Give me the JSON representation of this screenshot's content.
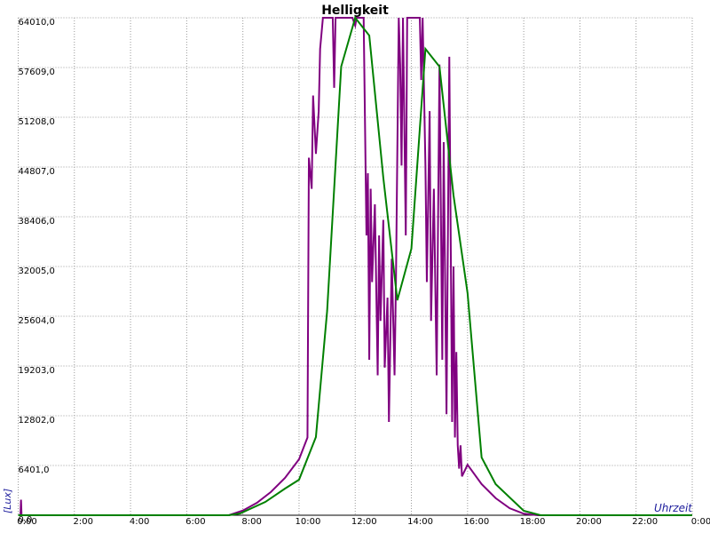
{
  "chart_data": {
    "type": "line",
    "title": "Helligkeit",
    "y_label": "[Lux]",
    "x_label": "Uhrzeit",
    "grid": true,
    "xlim": [
      0,
      24
    ],
    "ylim": [
      0,
      64010
    ],
    "xticks": [
      {
        "value": 0,
        "label": "0:00"
      },
      {
        "value": 2,
        "label": "2:00"
      },
      {
        "value": 4,
        "label": "4:00"
      },
      {
        "value": 6,
        "label": "6:00"
      },
      {
        "value": 8,
        "label": "8:00"
      },
      {
        "value": 10,
        "label": "10:00"
      },
      {
        "value": 12,
        "label": "12:00"
      },
      {
        "value": 14,
        "label": "14:00"
      },
      {
        "value": 16,
        "label": "16:00"
      },
      {
        "value": 18,
        "label": "18:00"
      },
      {
        "value": 20,
        "label": "20:00"
      },
      {
        "value": 22,
        "label": "22:00"
      },
      {
        "value": 24,
        "label": "0:00"
      }
    ],
    "yticks": [
      {
        "value": 0,
        "label": "0,0"
      },
      {
        "value": 6401,
        "label": "6401,0"
      },
      {
        "value": 12802,
        "label": "12802,0"
      },
      {
        "value": 19203,
        "label": "19203,0"
      },
      {
        "value": 25604,
        "label": "25604,0"
      },
      {
        "value": 32005,
        "label": "32005,0"
      },
      {
        "value": 38406,
        "label": "38406,0"
      },
      {
        "value": 44807,
        "label": "44807,0"
      },
      {
        "value": 51208,
        "label": "51208,0"
      },
      {
        "value": 57609,
        "label": "57609,0"
      },
      {
        "value": 64010,
        "label": "64010,0"
      }
    ],
    "series": [
      {
        "color": "#800080",
        "x": [
          0,
          0.08,
          0.1,
          0.12,
          7.5,
          8,
          8.5,
          9,
          9.5,
          10,
          10.3,
          10.35,
          10.45,
          10.5,
          10.6,
          10.7,
          10.75,
          10.85,
          11.2,
          11.25,
          11.3,
          11.9,
          12.0,
          12.05,
          12.3,
          12.4,
          12.45,
          12.5,
          12.55,
          12.6,
          12.7,
          12.8,
          12.85,
          12.9,
          13.0,
          13.05,
          13.15,
          13.2,
          13.3,
          13.4,
          13.45,
          13.55,
          13.6,
          13.65,
          13.7,
          13.75,
          13.8,
          13.85,
          14.3,
          14.35,
          14.4,
          14.5,
          14.55,
          14.65,
          14.7,
          14.8,
          14.9,
          15.0,
          15.1,
          15.15,
          15.25,
          15.35,
          15.45,
          15.5,
          15.55,
          15.6,
          15.65,
          15.7,
          15.75,
          15.8,
          16,
          16.5,
          17,
          17.5,
          18,
          18.5,
          24
        ],
        "values": [
          0,
          0,
          2000,
          0,
          0,
          600,
          1600,
          3000,
          4800,
          7200,
          10000,
          46000,
          42000,
          54000,
          46500,
          52000,
          60000,
          64010,
          64010,
          55000,
          64010,
          64010,
          63000,
          64010,
          64010,
          36000,
          44000,
          20000,
          42000,
          30000,
          40000,
          18000,
          36000,
          25000,
          38000,
          19000,
          28000,
          12000,
          33000,
          18000,
          30000,
          64010,
          58000,
          45000,
          64010,
          50000,
          36000,
          64010,
          64010,
          56000,
          64010,
          45000,
          30000,
          52000,
          25000,
          42000,
          18000,
          58000,
          20000,
          48000,
          13000,
          59000,
          12000,
          32000,
          10000,
          21000,
          9000,
          6000,
          9000,
          5000,
          6500,
          4000,
          2200,
          900,
          200,
          0,
          0
        ]
      },
      {
        "color": "#008000",
        "x": [
          0,
          7.5,
          7.9,
          8.8,
          9.5,
          10,
          10.6,
          11,
          11.5,
          12,
          12.5,
          13,
          13.5,
          14,
          14.5,
          15,
          15.5,
          16,
          16.5,
          17,
          18,
          18.6,
          24
        ],
        "values": [
          0,
          0,
          230,
          1710,
          3430,
          4570,
          10060,
          26290,
          57720,
          64010,
          61720,
          43430,
          27660,
          34290,
          60010,
          57720,
          41150,
          28580,
          7430,
          4000,
          570,
          0,
          0
        ]
      }
    ]
  }
}
